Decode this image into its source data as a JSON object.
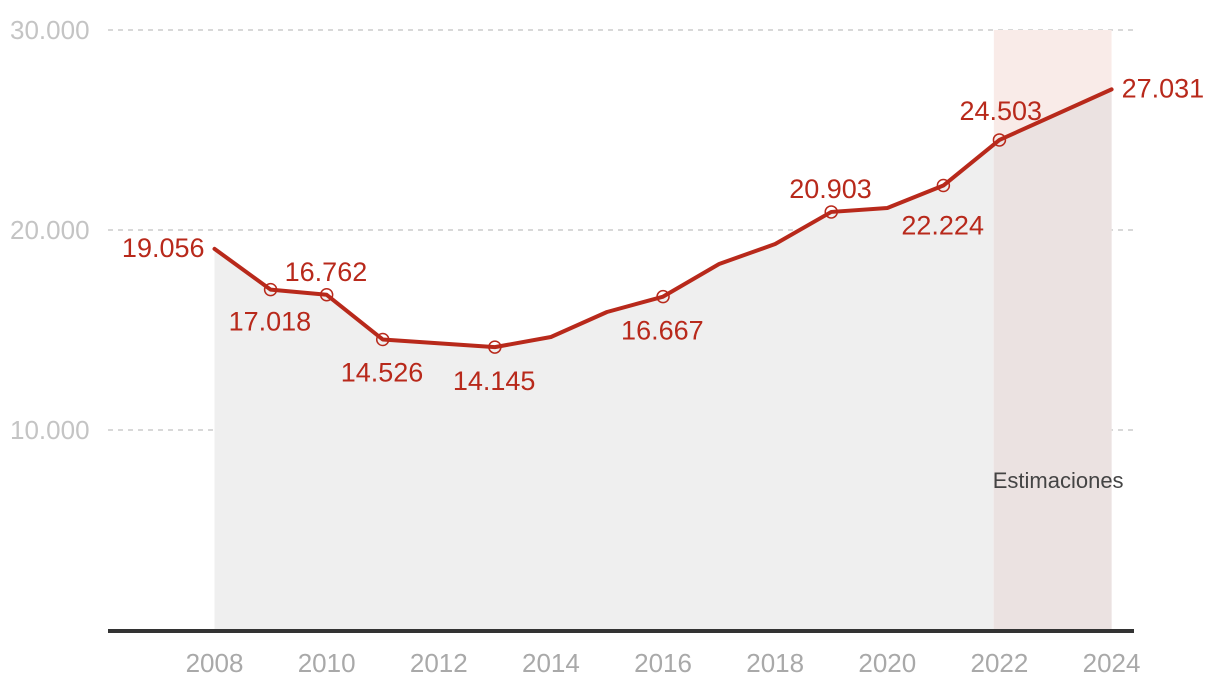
{
  "chart_data": {
    "type": "area",
    "title": "",
    "xlabel": "",
    "ylabel": "",
    "x": [
      2008,
      2009,
      2010,
      2011,
      2013,
      2014,
      2015,
      2016,
      2017,
      2018,
      2019,
      2020,
      2021,
      2022,
      2024
    ],
    "series": [
      {
        "name": "",
        "values": [
          19056,
          17018,
          16762,
          14526,
          14145,
          14650,
          15900,
          16667,
          18300,
          19300,
          20903,
          21100,
          22224,
          24503,
          27031
        ]
      }
    ],
    "markers": [
      2009,
      2010,
      2011,
      2013,
      2016,
      2019,
      2021,
      2022
    ],
    "data_labels": [
      {
        "x": 2008,
        "text": "19.056"
      },
      {
        "x": 2009,
        "text": "17.018"
      },
      {
        "x": 2010,
        "text": "16.762"
      },
      {
        "x": 2011,
        "text": "14.526"
      },
      {
        "x": 2013,
        "text": "14.145"
      },
      {
        "x": 2016,
        "text": "16.667"
      },
      {
        "x": 2019,
        "text": "20.903"
      },
      {
        "x": 2021,
        "text": "22.224"
      },
      {
        "x": 2022,
        "text": "24.503"
      },
      {
        "x": 2024,
        "text": "27.031"
      }
    ],
    "y_ticks": [
      {
        "value": 10000,
        "label": "10.000"
      },
      {
        "value": 20000,
        "label": "20.000"
      },
      {
        "value": 30000,
        "label": "30.000"
      }
    ],
    "x_ticks": [
      {
        "value": 2008,
        "label": "2008"
      },
      {
        "value": 2010,
        "label": "2010"
      },
      {
        "value": 2012,
        "label": "2012"
      },
      {
        "value": 2014,
        "label": "2014"
      },
      {
        "value": 2016,
        "label": "2016"
      },
      {
        "value": 2018,
        "label": "2018"
      },
      {
        "value": 2020,
        "label": "2020"
      },
      {
        "value": 2022,
        "label": "2022"
      },
      {
        "value": 2024,
        "label": "2024"
      }
    ],
    "ylim": [
      0,
      30000
    ],
    "xlim": [
      2006.1,
      2024.4
    ],
    "grid": true,
    "highlight_band": {
      "from": 2021.9,
      "to": 2024,
      "label": "Estimaciones"
    },
    "colors": {
      "line": "#b8291b",
      "area": "#efefef",
      "band": "#f9ebe8",
      "band_area": "#ebe2e1",
      "grid": "#cccccc",
      "axis": "#333333"
    }
  }
}
